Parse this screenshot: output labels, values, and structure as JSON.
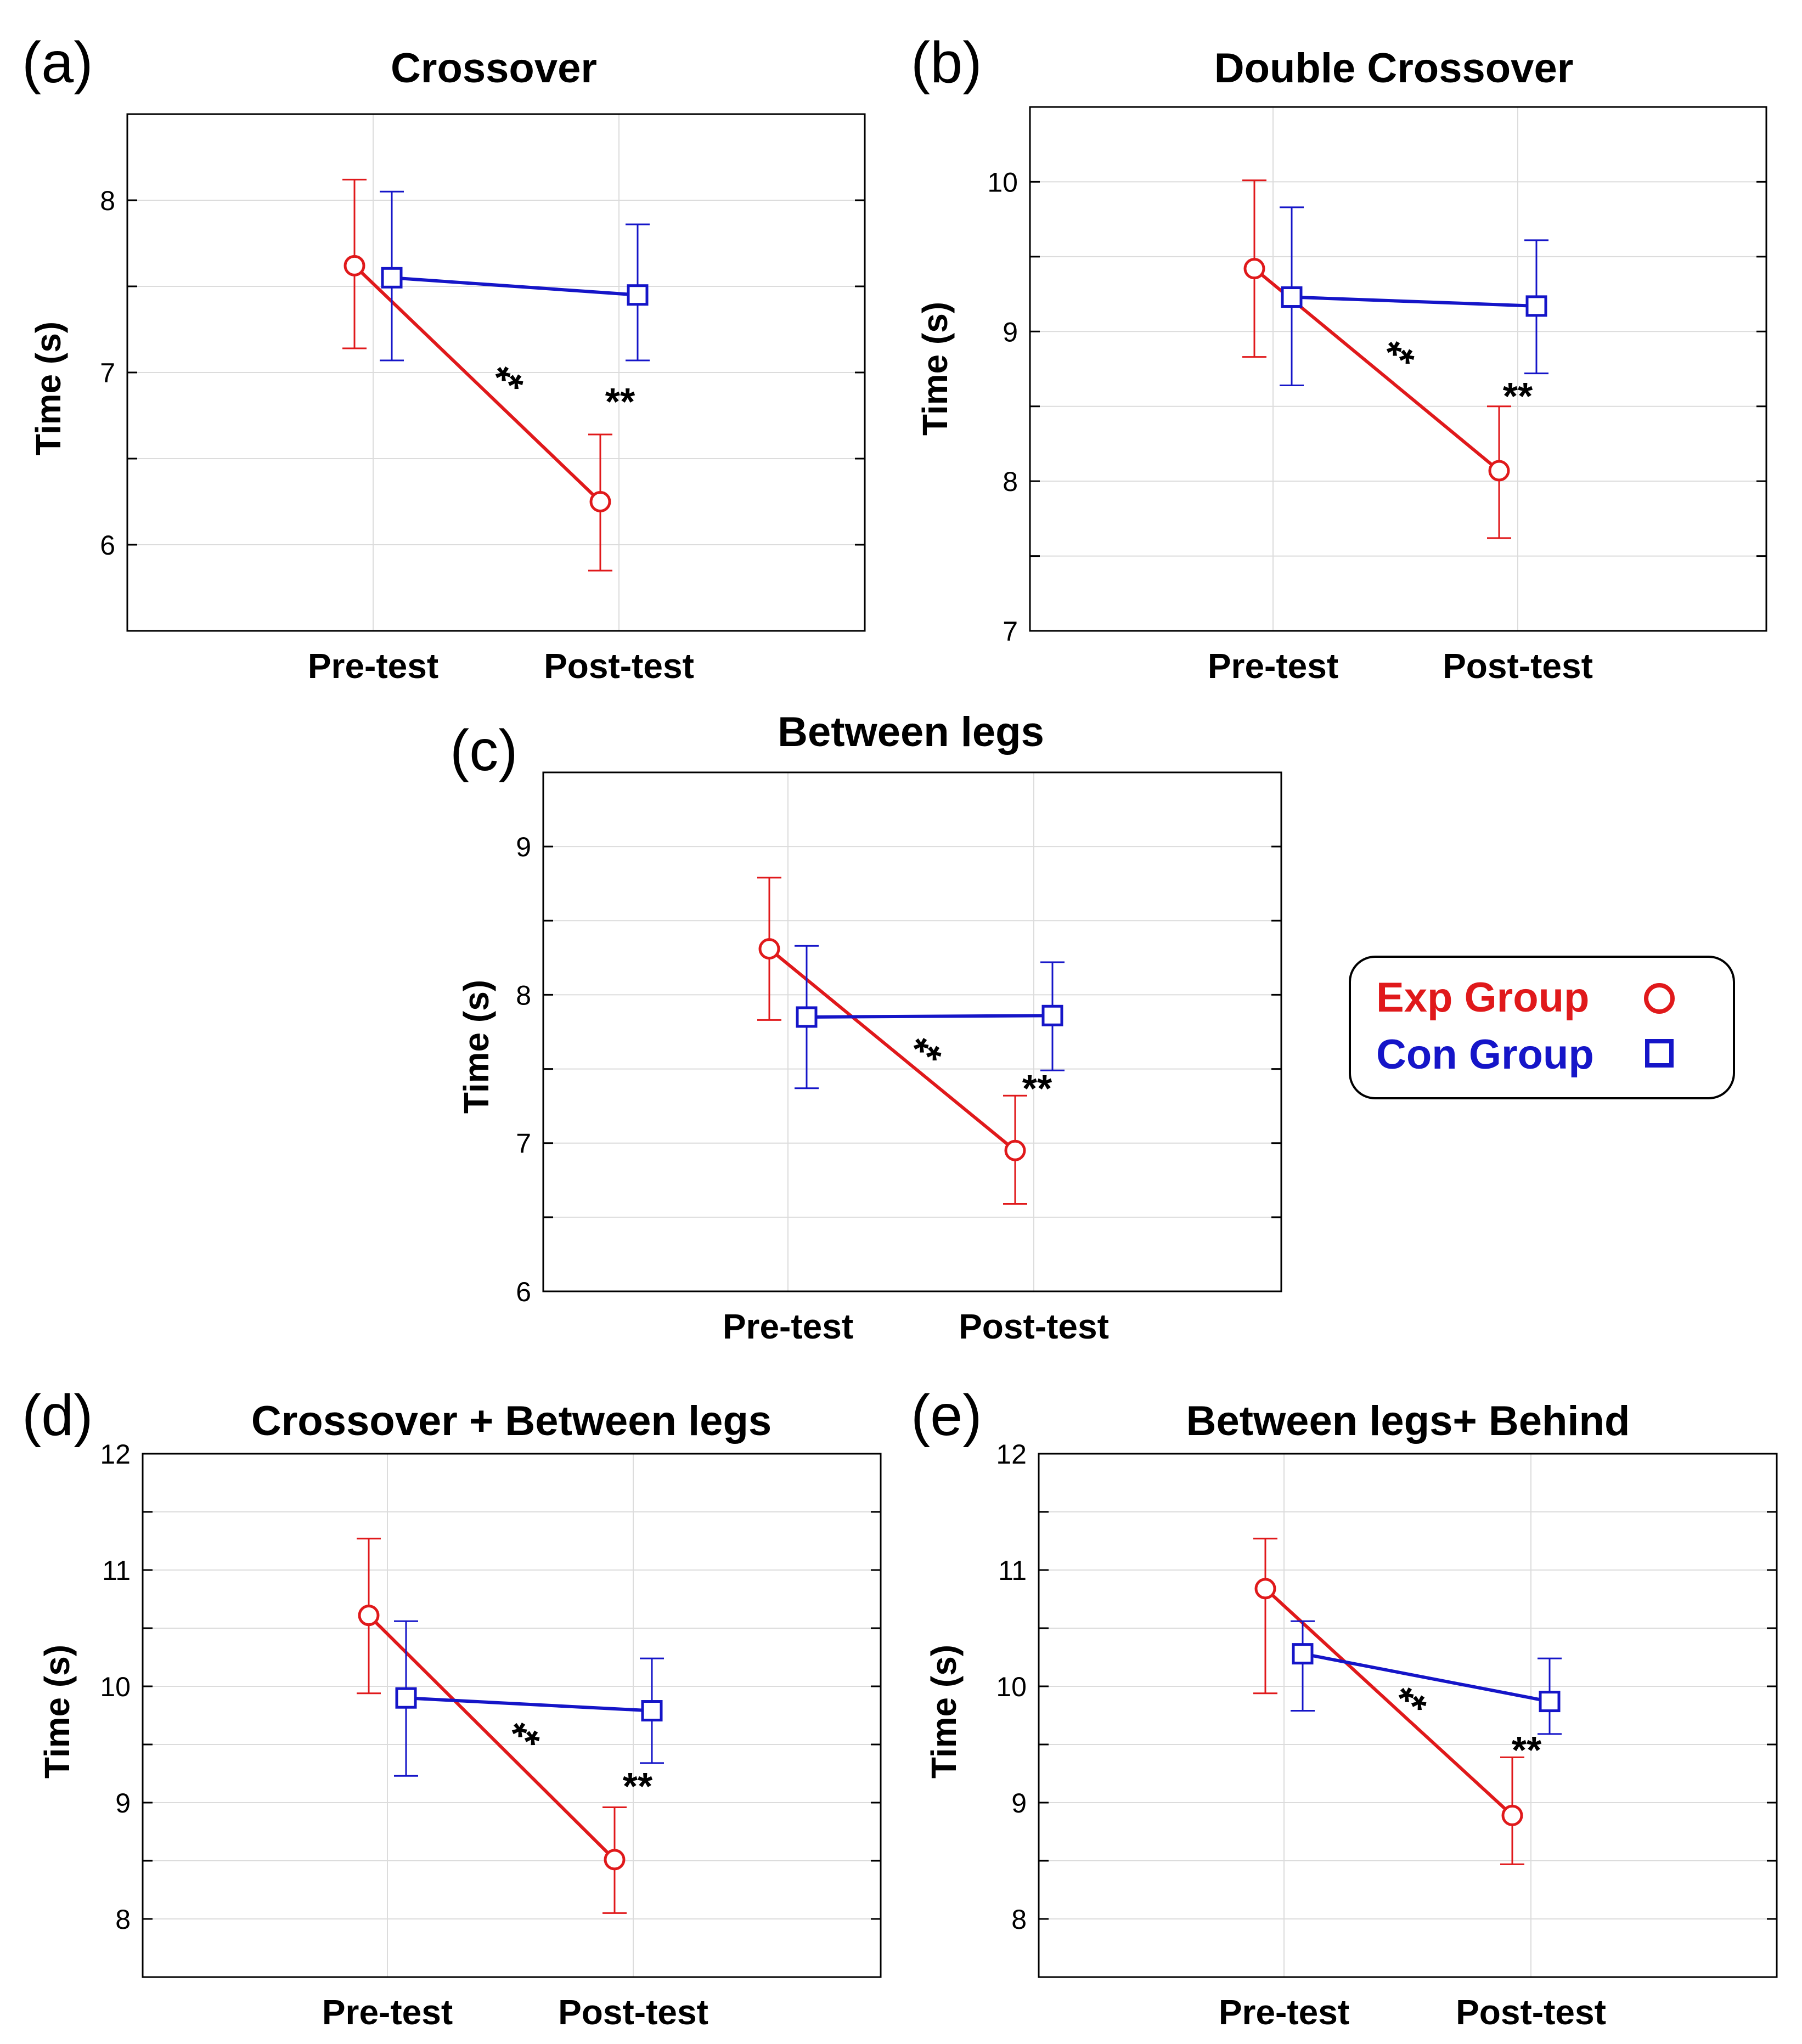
{
  "figure": {
    "legend": {
      "entries": [
        {
          "label": "Exp Group",
          "color": "#e0191b",
          "marker": "circle"
        },
        {
          "label": "Con Group",
          "color": "#1515c8",
          "marker": "square"
        }
      ]
    }
  },
  "chart_data": [
    {
      "panel": "(a)",
      "type": "line",
      "title": "Crossover",
      "xlabel": "",
      "ylabel": "Time (s)",
      "categories": [
        "Pre-test",
        "Post-test"
      ],
      "ylim": [
        5.5,
        8.5
      ],
      "yticks": [
        6,
        7,
        8
      ],
      "grid": true,
      "series": [
        {
          "name": "Exp Group",
          "color": "#e0191b",
          "marker": "circle",
          "values": [
            7.62,
            6.25
          ],
          "err_low": [
            7.14,
            5.85
          ],
          "err_high": [
            8.12,
            6.64
          ]
        },
        {
          "name": "Con Group",
          "color": "#1515c8",
          "marker": "square",
          "values": [
            7.55,
            7.45
          ],
          "err_low": [
            7.07,
            7.07
          ],
          "err_high": [
            8.05,
            7.86
          ]
        }
      ],
      "annotations": [
        {
          "text": "**",
          "kind": "slope"
        },
        {
          "text": "**",
          "kind": "post"
        }
      ]
    },
    {
      "panel": "(b)",
      "type": "line",
      "title": "Double Crossover",
      "xlabel": "",
      "ylabel": "Time (s)",
      "categories": [
        "Pre-test",
        "Post-test"
      ],
      "ylim": [
        7,
        10.5
      ],
      "yticks": [
        7,
        8,
        9,
        10
      ],
      "grid": true,
      "series": [
        {
          "name": "Exp Group",
          "color": "#e0191b",
          "marker": "circle",
          "values": [
            9.42,
            8.07
          ],
          "err_low": [
            8.83,
            7.62
          ],
          "err_high": [
            10.01,
            8.5
          ]
        },
        {
          "name": "Con Group",
          "color": "#1515c8",
          "marker": "square",
          "values": [
            9.23,
            9.17
          ],
          "err_low": [
            8.64,
            8.72
          ],
          "err_high": [
            9.83,
            9.61
          ]
        }
      ],
      "annotations": [
        {
          "text": "**",
          "kind": "slope"
        },
        {
          "text": "**",
          "kind": "post"
        }
      ]
    },
    {
      "panel": "(c)",
      "type": "line",
      "title": "Between legs",
      "xlabel": "",
      "ylabel": "Time (s)",
      "categories": [
        "Pre-test",
        "Post-test"
      ],
      "ylim": [
        6,
        9.5
      ],
      "yticks": [
        6,
        7,
        8,
        9
      ],
      "grid": true,
      "series": [
        {
          "name": "Exp Group",
          "color": "#e0191b",
          "marker": "circle",
          "values": [
            8.31,
            6.95
          ],
          "err_low": [
            7.83,
            6.59
          ],
          "err_high": [
            8.79,
            7.32
          ]
        },
        {
          "name": "Con Group",
          "color": "#1515c8",
          "marker": "square",
          "values": [
            7.85,
            7.86
          ],
          "err_low": [
            7.37,
            7.49
          ],
          "err_high": [
            8.33,
            8.22
          ]
        }
      ],
      "annotations": [
        {
          "text": "**",
          "kind": "slope"
        },
        {
          "text": "**",
          "kind": "post"
        }
      ]
    },
    {
      "panel": "(d)",
      "type": "line",
      "title": "Crossover + Between legs",
      "xlabel": "",
      "ylabel": "Time (s)",
      "categories": [
        "Pre-test",
        "Post-test"
      ],
      "ylim": [
        7.5,
        12
      ],
      "yticks": [
        8,
        9,
        10,
        11,
        12
      ],
      "grid": true,
      "series": [
        {
          "name": "Exp Group",
          "color": "#e0191b",
          "marker": "circle",
          "values": [
            10.61,
            8.51
          ],
          "err_low": [
            9.94,
            8.05
          ],
          "err_high": [
            11.27,
            8.96
          ]
        },
        {
          "name": "Con Group",
          "color": "#1515c8",
          "marker": "square",
          "values": [
            9.9,
            9.79
          ],
          "err_low": [
            9.23,
            9.34
          ],
          "err_high": [
            10.56,
            10.24
          ]
        }
      ],
      "annotations": [
        {
          "text": "**",
          "kind": "slope"
        },
        {
          "text": "**",
          "kind": "post"
        }
      ]
    },
    {
      "panel": "(e)",
      "type": "line",
      "title": "Between legs+ Behind",
      "xlabel": "",
      "ylabel": "Time (s)",
      "categories": [
        "Pre-test",
        "Post-test"
      ],
      "ylim": [
        7.5,
        12
      ],
      "yticks": [
        8,
        9,
        10,
        11,
        12
      ],
      "grid": true,
      "series": [
        {
          "name": "Exp Group",
          "color": "#e0191b",
          "marker": "circle",
          "values": [
            10.84,
            8.89
          ],
          "err_low": [
            9.94,
            8.47
          ],
          "err_high": [
            11.27,
            9.39
          ]
        },
        {
          "name": "Con Group",
          "color": "#1515c8",
          "marker": "square",
          "values": [
            10.28,
            9.87
          ],
          "err_low": [
            9.79,
            9.59
          ],
          "err_high": [
            10.56,
            10.24
          ]
        }
      ],
      "annotations": [
        {
          "text": "**",
          "kind": "slope"
        },
        {
          "text": "**",
          "kind": "post"
        }
      ]
    }
  ]
}
